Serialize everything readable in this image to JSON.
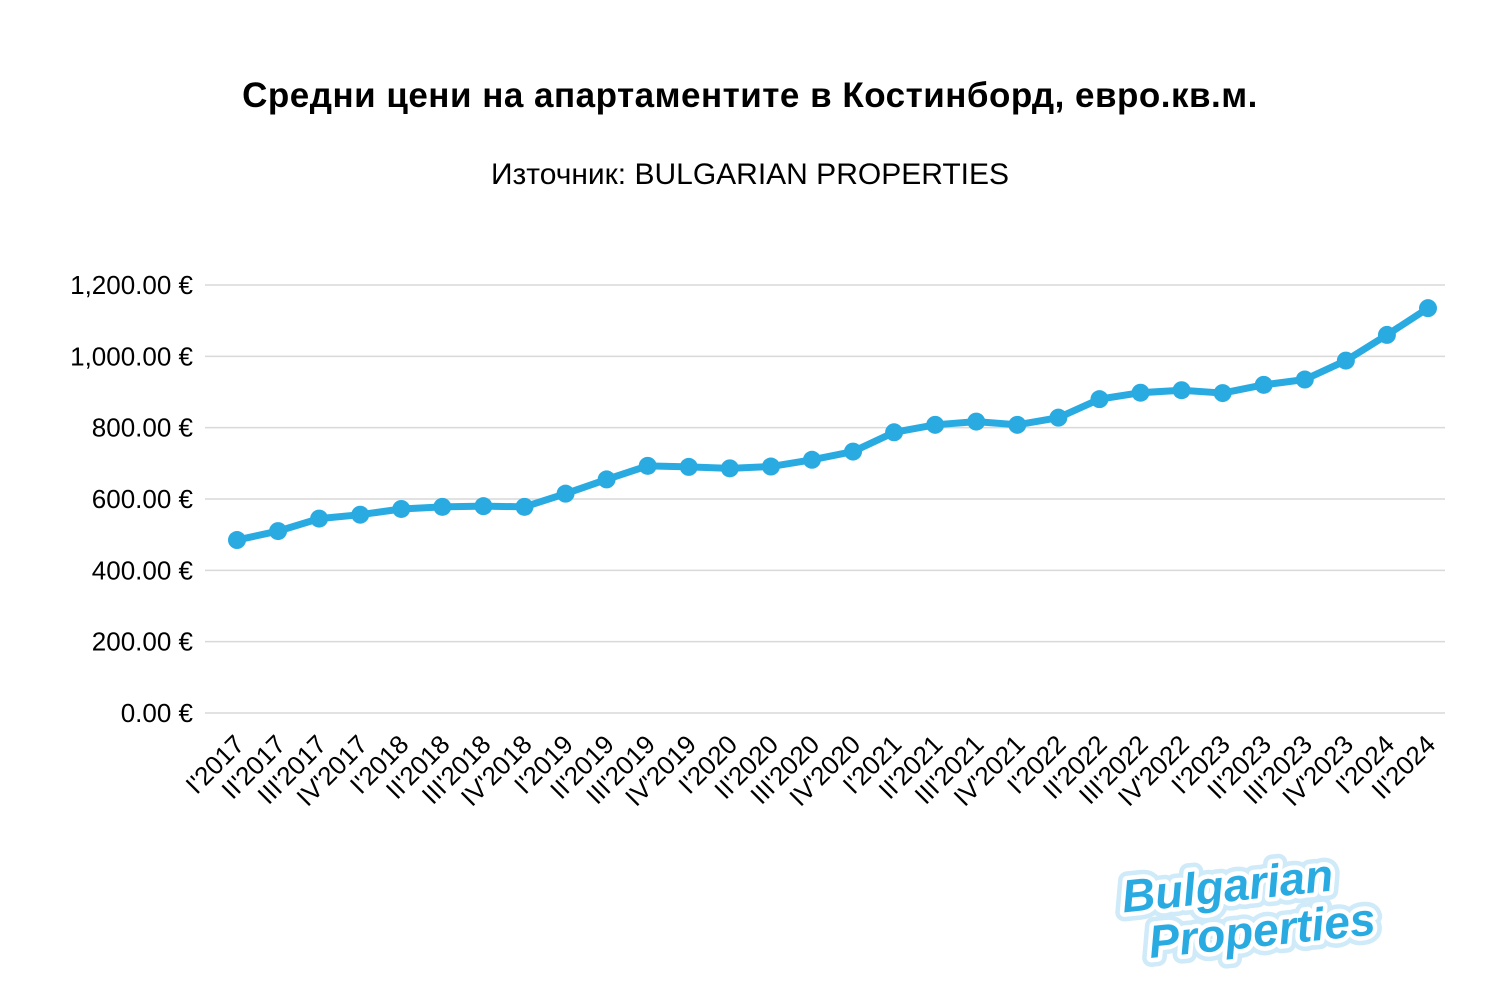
{
  "title": "Средни цени на апартаментите в Костинборд, евро.кв.м.",
  "subtitle": "Източник: BULGARIAN PROPERTIES",
  "logo": {
    "line1": "Bulgarian",
    "line2": "Properties"
  },
  "colors": {
    "line": "#29abe2",
    "marker": "#29abe2",
    "grid": "#d9d9d9",
    "axis_text": "#000000",
    "logo_blue": "#29abe2",
    "logo_outline": "#ffffff",
    "logo_glow": "#cfeaf8"
  },
  "chart_data": {
    "type": "line",
    "title": "Средни цени на апартаментите в Костинборд, евро.кв.м.",
    "subtitle": "Източник: BULGARIAN PROPERTIES",
    "xlabel": "",
    "ylabel": "",
    "ylim": [
      0,
      1200
    ],
    "ytick_step": 200,
    "ytick_labels": [
      "0.00 €",
      "200.00 €",
      "400.00 €",
      "600.00 €",
      "800.00 €",
      "1,000.00 €",
      "1,200.00 €"
    ],
    "grid": true,
    "legend": "none",
    "currency": "EUR",
    "categories": [
      "I'2017",
      "II'2017",
      "III'2017",
      "IV'2017",
      "I'2018",
      "II'2018",
      "III'2018",
      "IV'2018",
      "I'2019",
      "II'2019",
      "III'2019",
      "IV'2019",
      "I'2020",
      "II'2020",
      "III'2020",
      "IV'2020",
      "I'2021",
      "II'2021",
      "III'2021",
      "IV'2021",
      "I'2022",
      "II'2022",
      "III'2022",
      "IV'2022",
      "I'2023",
      "II'2023",
      "III'2023",
      "IV'2023",
      "I'2024",
      "II'2024"
    ],
    "values": [
      485,
      510,
      545,
      556,
      572,
      578,
      580,
      578,
      615,
      655,
      693,
      690,
      686,
      691,
      710,
      733,
      787,
      808,
      817,
      808,
      828,
      880,
      898,
      905,
      897,
      920,
      935,
      988,
      1060,
      1135
    ]
  }
}
